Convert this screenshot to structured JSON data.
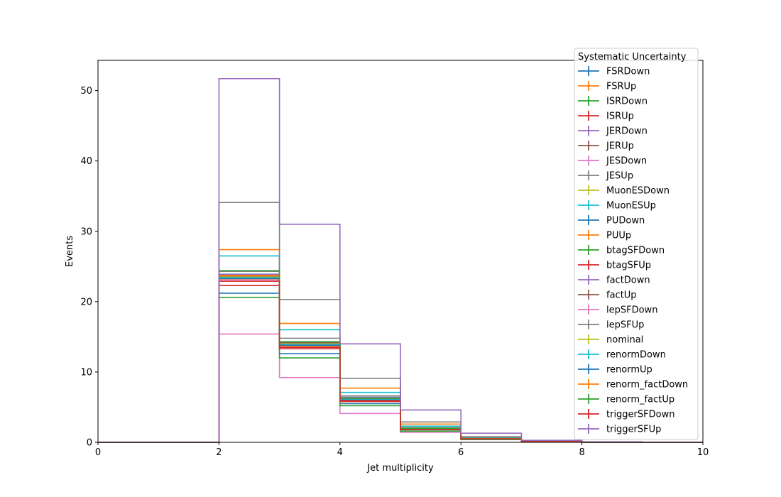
{
  "chart_data": {
    "type": "step-histogram",
    "title": "",
    "xlabel": "Jet multiplicity",
    "ylabel": "Events",
    "xlim": [
      0,
      10
    ],
    "ylim": [
      0,
      54.3
    ],
    "x_ticks": [
      0,
      2,
      4,
      6,
      8,
      10
    ],
    "y_ticks": [
      0,
      10,
      20,
      30,
      40,
      50
    ],
    "bin_edges": [
      0,
      1,
      2,
      3,
      4,
      5,
      6,
      7,
      8,
      9,
      10
    ],
    "grid": false,
    "legend": {
      "title": "Systematic Uncertainty",
      "placement": "top-right"
    },
    "series": [
      {
        "name": "FSRDown",
        "color": "#1f77b4",
        "values": [
          0,
          0,
          21.2,
          12.6,
          5.5,
          1.6,
          0.4,
          0.08,
          0.02,
          0
        ]
      },
      {
        "name": "FSRUp",
        "color": "#ff7f0e",
        "values": [
          0,
          0,
          27.4,
          16.9,
          7.7,
          2.6,
          0.7,
          0.14,
          0.03,
          0
        ]
      },
      {
        "name": "ISRDown",
        "color": "#2ca02c",
        "values": [
          0,
          0,
          23.3,
          13.9,
          6.1,
          1.9,
          0.5,
          0.1,
          0.02,
          0
        ]
      },
      {
        "name": "ISRUp",
        "color": "#d62728",
        "values": [
          0,
          0,
          23.6,
          14.0,
          6.2,
          1.9,
          0.5,
          0.1,
          0.02,
          0
        ]
      },
      {
        "name": "JERDown",
        "color": "#9467bd",
        "values": [
          0,
          0,
          23.4,
          14.0,
          6.1,
          1.9,
          0.5,
          0.1,
          0.02,
          0
        ]
      },
      {
        "name": "JERUp",
        "color": "#8c564b",
        "values": [
          0,
          0,
          23.8,
          14.2,
          6.3,
          2.0,
          0.5,
          0.1,
          0.02,
          0
        ]
      },
      {
        "name": "JESDown",
        "color": "#e377c2",
        "values": [
          0,
          0,
          15.4,
          9.2,
          4.1,
          1.4,
          0.4,
          0.08,
          0.02,
          0
        ]
      },
      {
        "name": "JESUp",
        "color": "#7f7f7f",
        "values": [
          0,
          0,
          24.3,
          14.8,
          6.6,
          2.1,
          0.6,
          0.12,
          0.03,
          0
        ]
      },
      {
        "name": "MuonESDown",
        "color": "#bcbd22",
        "values": [
          0,
          0,
          23.2,
          13.8,
          6.0,
          1.9,
          0.5,
          0.1,
          0.02,
          0
        ]
      },
      {
        "name": "MuonESUp",
        "color": "#17becf",
        "values": [
          0,
          0,
          26.5,
          16.0,
          7.1,
          2.3,
          0.6,
          0.12,
          0.03,
          0
        ]
      },
      {
        "name": "PUDown",
        "color": "#1f77b4",
        "values": [
          0,
          0,
          23.5,
          14.1,
          6.2,
          2.0,
          0.5,
          0.1,
          0.02,
          0
        ]
      },
      {
        "name": "PUUp",
        "color": "#ff7f0e",
        "values": [
          0,
          0,
          23.7,
          14.3,
          6.3,
          2.0,
          0.5,
          0.1,
          0.02,
          0
        ]
      },
      {
        "name": "btagSFDown",
        "color": "#2ca02c",
        "values": [
          0,
          0,
          20.6,
          12.0,
          5.2,
          1.6,
          0.4,
          0.08,
          0.02,
          0
        ]
      },
      {
        "name": "btagSFUp",
        "color": "#d62728",
        "values": [
          0,
          0,
          22.3,
          13.3,
          5.8,
          1.8,
          0.5,
          0.1,
          0.02,
          0
        ]
      },
      {
        "name": "factDown",
        "color": "#9467bd",
        "values": [
          0,
          0,
          23.9,
          14.3,
          6.4,
          2.0,
          0.5,
          0.1,
          0.02,
          0
        ]
      },
      {
        "name": "factUp",
        "color": "#8c564b",
        "values": [
          0,
          0,
          23.6,
          14.1,
          6.2,
          1.9,
          0.5,
          0.1,
          0.02,
          0
        ]
      },
      {
        "name": "lepSFDown",
        "color": "#e377c2",
        "values": [
          0,
          0,
          23.1,
          13.7,
          6.0,
          1.9,
          0.5,
          0.1,
          0.02,
          0
        ]
      },
      {
        "name": "lepSFUp",
        "color": "#7f7f7f",
        "values": [
          0,
          0,
          34.1,
          20.3,
          9.1,
          2.9,
          0.8,
          0.16,
          0.03,
          0
        ]
      },
      {
        "name": "nominal",
        "color": "#bcbd22",
        "values": [
          0,
          0,
          23.5,
          14.0,
          6.1,
          1.9,
          0.5,
          0.1,
          0.02,
          0
        ]
      },
      {
        "name": "renormDown",
        "color": "#17becf",
        "values": [
          0,
          0,
          23.4,
          13.9,
          6.1,
          1.9,
          0.5,
          0.1,
          0.02,
          0
        ]
      },
      {
        "name": "renormUp",
        "color": "#1f77b4",
        "values": [
          0,
          0,
          23.3,
          13.8,
          6.0,
          1.9,
          0.5,
          0.1,
          0.02,
          0
        ]
      },
      {
        "name": "renorm_factDown",
        "color": "#ff7f0e",
        "values": [
          0,
          0,
          23.7,
          13.6,
          5.9,
          1.8,
          0.5,
          0.1,
          0.02,
          0
        ]
      },
      {
        "name": "renorm_factUp",
        "color": "#2ca02c",
        "values": [
          0,
          0,
          24.4,
          14.3,
          6.3,
          2.0,
          0.5,
          0.1,
          0.02,
          0
        ]
      },
      {
        "name": "triggerSFDown",
        "color": "#d62728",
        "values": [
          0,
          0,
          22.9,
          13.5,
          5.9,
          1.8,
          0.5,
          0.1,
          0.02,
          0
        ]
      },
      {
        "name": "triggerSFUp",
        "color": "#9467bd",
        "values": [
          0,
          0,
          51.7,
          31.0,
          14.0,
          4.6,
          1.3,
          0.28,
          0.06,
          0
        ]
      }
    ]
  }
}
